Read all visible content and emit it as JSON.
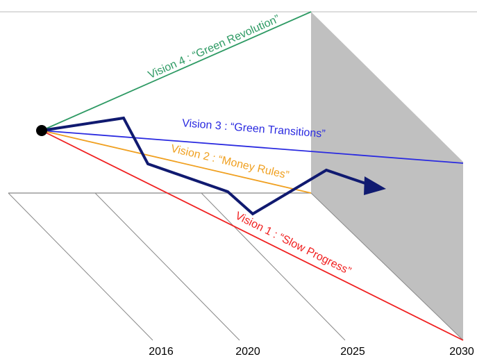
{
  "visions": [
    {
      "label": "Vision 4 : “Green Revolution”"
    },
    {
      "label": "Vision 3 : “Green Transitions”"
    },
    {
      "label": "Vision 2 : “Money Rules”"
    },
    {
      "label": "Vision 1 : “Slow Progress”"
    }
  ],
  "years": [
    "2016",
    "2020",
    "2025",
    "2030"
  ]
}
